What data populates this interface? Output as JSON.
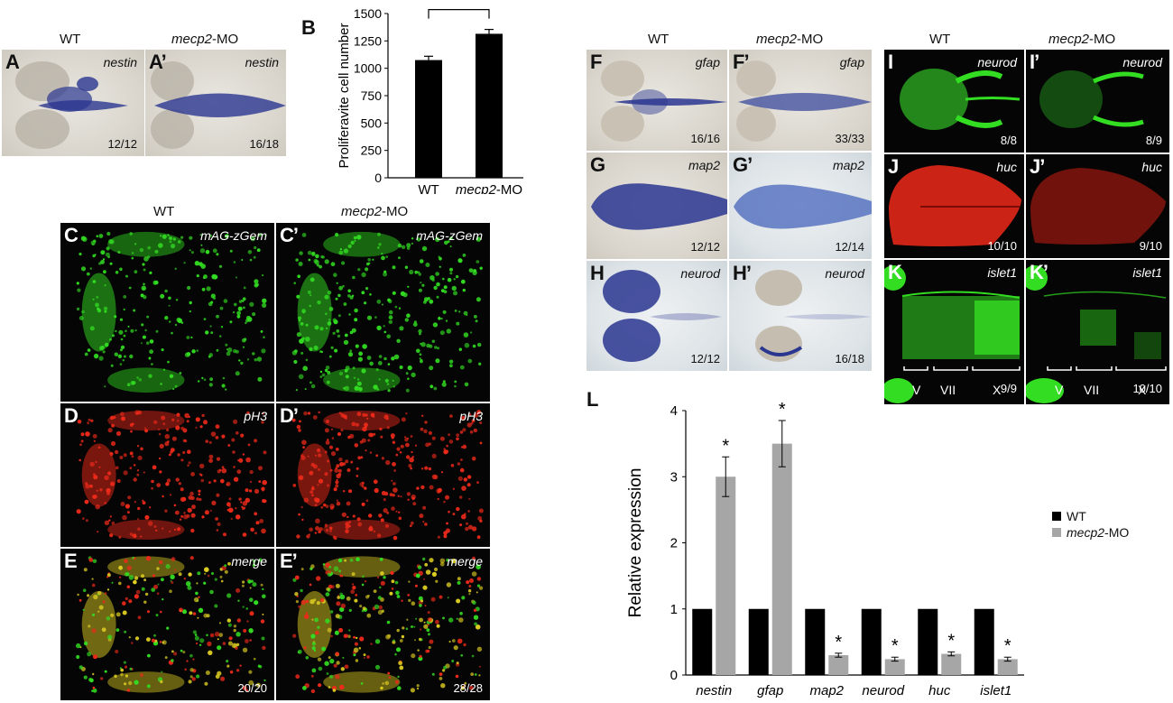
{
  "headers": {
    "A_wt": "WT",
    "A_mo_gene": "mecp2",
    "A_mo_suffix": "-MO",
    "C_wt": "WT",
    "C_mo_gene": "mecp2",
    "C_mo_suffix": "-MO",
    "F_wt": "WT",
    "F_mo_gene": "mecp2",
    "F_mo_suffix": "-MO",
    "I_wt": "WT",
    "I_mo_gene": "mecp2",
    "I_mo_suffix": "-MO"
  },
  "panels": {
    "A": {
      "label": "A",
      "gene": "nestin",
      "count": "12/12"
    },
    "A2": {
      "label": "A’",
      "gene": "nestin",
      "count": "16/18"
    },
    "C": {
      "label": "C",
      "gene": "mAG-zGem",
      "count": ""
    },
    "C2": {
      "label": "C’",
      "gene": "mAG-zGem",
      "count": ""
    },
    "D": {
      "label": "D",
      "gene": "pH3",
      "count": ""
    },
    "D2": {
      "label": "D’",
      "gene": "pH3",
      "count": ""
    },
    "E": {
      "label": "E",
      "gene": "merge",
      "count": "20/20"
    },
    "E2": {
      "label": "E’",
      "gene": "merge",
      "count": "28/28"
    },
    "F": {
      "label": "F",
      "gene": "gfap",
      "count": "16/16"
    },
    "F2": {
      "label": "F’",
      "gene": "gfap",
      "count": "33/33"
    },
    "G": {
      "label": "G",
      "gene": "map2",
      "count": "12/12"
    },
    "G2": {
      "label": "G’",
      "gene": "map2",
      "count": "12/14"
    },
    "H": {
      "label": "H",
      "gene": "neurod",
      "count": "12/12"
    },
    "H2": {
      "label": "H’",
      "gene": "neurod",
      "count": "16/18"
    },
    "I": {
      "label": "I",
      "gene": "neurod",
      "count": "8/8"
    },
    "I2": {
      "label": "I’",
      "gene": "neurod",
      "count": "8/9"
    },
    "J": {
      "label": "J",
      "gene": "huc",
      "count": "10/10"
    },
    "J2": {
      "label": "J’",
      "gene": "huc",
      "count": "9/10"
    },
    "K": {
      "label": "K",
      "gene": "islet1",
      "count": "9/9",
      "regions": [
        "V",
        "VII",
        "X"
      ]
    },
    "K2": {
      "label": "K’",
      "gene": "islet1",
      "count": "10/10",
      "regions": [
        "V",
        "VII",
        "X"
      ]
    }
  },
  "chart_data": [
    {
      "panel": "B",
      "type": "bar",
      "categories": [
        "WT",
        "mecp2-MO"
      ],
      "values": [
        1075,
        1315
      ],
      "errors": [
        35,
        40
      ],
      "ylabel": "Proliferavite cell number",
      "ylim": [
        0,
        1500
      ],
      "yticks": [
        0,
        250,
        500,
        750,
        1000,
        1250,
        1500
      ],
      "significance": "*",
      "bar_color": "#000000"
    },
    {
      "panel": "L",
      "type": "bar",
      "categories": [
        "nestin",
        "gfap",
        "map2",
        "neurod",
        "huc",
        "islet1"
      ],
      "series": [
        {
          "name": "WT",
          "values": [
            1,
            1,
            1,
            1,
            1,
            1
          ],
          "errors": [
            0,
            0,
            0,
            0,
            0,
            0
          ],
          "color": "#000000"
        },
        {
          "name": "mecp2-MO",
          "values": [
            3.0,
            3.5,
            0.3,
            0.24,
            0.32,
            0.24
          ],
          "errors": [
            0.3,
            0.35,
            0.03,
            0.03,
            0.03,
            0.03
          ],
          "color": "#a6a6a6"
        }
      ],
      "ylabel": "Relative expression",
      "ylim": [
        0,
        4
      ],
      "yticks": [
        0,
        1,
        2,
        3,
        4
      ],
      "significance": [
        "*",
        "*",
        "*",
        "*",
        "*",
        "*"
      ],
      "legend_position": "right"
    }
  ],
  "labels": {
    "B": "B",
    "L": "L"
  },
  "legend": {
    "wt": "WT",
    "mo_gene": "mecp2",
    "mo_suffix": "-MO"
  },
  "colors": {
    "ish_blue": "#2a3690",
    "gfp_green": "#33dd22",
    "red": "#ee2a1a",
    "yellow": "#ddcc22"
  }
}
